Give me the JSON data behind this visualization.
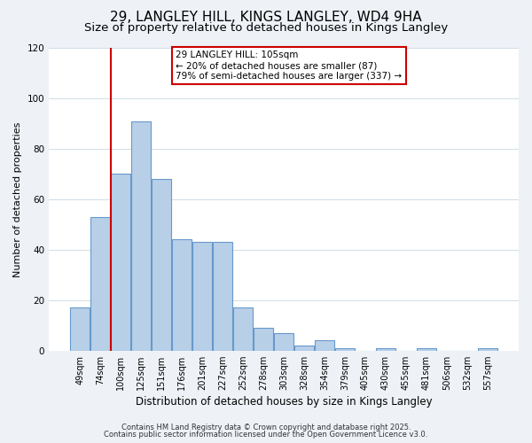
{
  "title": "29, LANGLEY HILL, KINGS LANGLEY, WD4 9HA",
  "subtitle": "Size of property relative to detached houses in Kings Langley",
  "xlabel": "Distribution of detached houses by size in Kings Langley",
  "ylabel": "Number of detached properties",
  "bar_labels": [
    "49sqm",
    "74sqm",
    "100sqm",
    "125sqm",
    "151sqm",
    "176sqm",
    "201sqm",
    "227sqm",
    "252sqm",
    "278sqm",
    "303sqm",
    "328sqm",
    "354sqm",
    "379sqm",
    "405sqm",
    "430sqm",
    "455sqm",
    "481sqm",
    "506sqm",
    "532sqm",
    "557sqm"
  ],
  "bar_values": [
    17,
    53,
    70,
    91,
    68,
    44,
    43,
    43,
    17,
    9,
    7,
    2,
    4,
    1,
    0,
    1,
    0,
    1,
    0,
    0,
    1
  ],
  "bar_color": "#b8cfe8",
  "bar_edge_color": "#6699cc",
  "ylim": [
    0,
    120
  ],
  "yticks": [
    0,
    20,
    40,
    60,
    80,
    100,
    120
  ],
  "vline_x": 1.5,
  "vline_color": "#cc0000",
  "annotation_title": "29 LANGLEY HILL: 105sqm",
  "annotation_line1": "← 20% of detached houses are smaller (87)",
  "annotation_line2": "79% of semi-detached houses are larger (337) →",
  "annotation_box_color": "#ffffff",
  "annotation_box_edge": "#cc0000",
  "footer1": "Contains HM Land Registry data © Crown copyright and database right 2025.",
  "footer2": "Contains public sector information licensed under the Open Government Licence v3.0.",
  "bg_color": "#eef2f7",
  "plot_bg_color": "#ffffff",
  "title_fontsize": 11,
  "subtitle_fontsize": 9.5,
  "grid_color": "#d0dde8"
}
